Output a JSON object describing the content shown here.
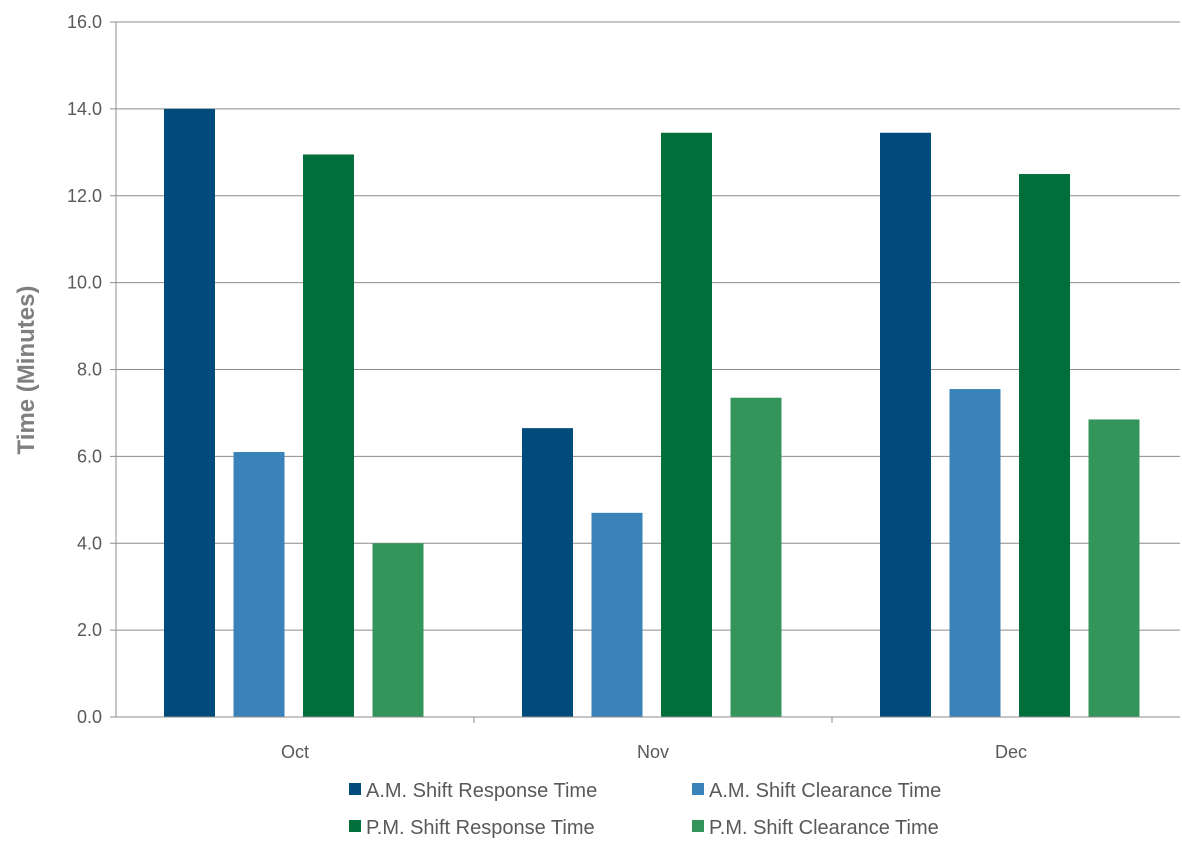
{
  "chart_data": {
    "type": "bar",
    "title": "",
    "xlabel": "",
    "ylabel": "Time (Minutes)",
    "ylim": [
      0,
      16
    ],
    "yticks": [
      "0.0",
      "2.0",
      "4.0",
      "6.0",
      "8.0",
      "10.0",
      "12.0",
      "14.0",
      "16.0"
    ],
    "categories": [
      "Oct",
      "Nov",
      "Dec"
    ],
    "grid": "horizontal",
    "legend_position": "bottom",
    "series": [
      {
        "name": "A.M. Shift Response Time",
        "color": "#004a7c",
        "values": [
          14.0,
          6.65,
          13.45
        ]
      },
      {
        "name": "A.M. Shift Clearance Time",
        "color": "#3a82ba",
        "values": [
          6.1,
          4.7,
          7.55
        ]
      },
      {
        "name": "P.M. Shift Response Time",
        "color": "#006f3c",
        "values": [
          12.95,
          13.45,
          12.5
        ]
      },
      {
        "name": "P.M. Shift Clearance Time",
        "color": "#33955a",
        "values": [
          4.0,
          7.35,
          6.85
        ]
      }
    ]
  }
}
